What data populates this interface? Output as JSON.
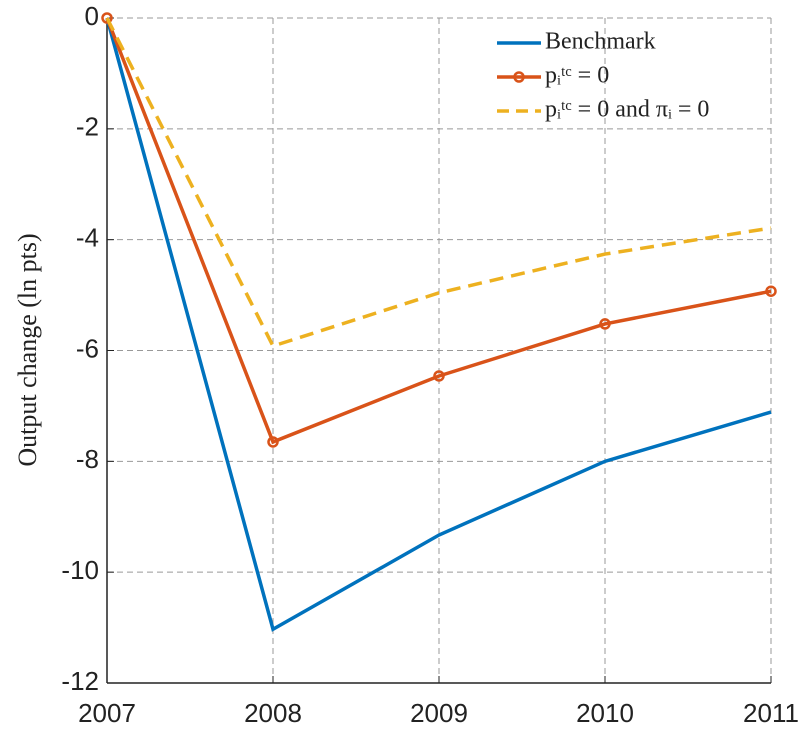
{
  "chart_data": {
    "type": "line",
    "ylabel": "Output change (ln pts)",
    "x": [
      2007,
      2008,
      2009,
      2010,
      2011
    ],
    "xlim": [
      2007,
      2011
    ],
    "xticks": [
      2007,
      2008,
      2009,
      2010,
      2011
    ],
    "ylim": [
      -12,
      0
    ],
    "yticks": [
      0,
      -2,
      -4,
      -6,
      -8,
      -10,
      -12
    ],
    "grid": true,
    "legend": "northeast",
    "series": [
      {
        "name": "Benchmark",
        "color": "#0072bd",
        "style": "solid",
        "marker": "none",
        "values": [
          0,
          -11.03,
          -9.33,
          -8.0,
          -7.11
        ]
      },
      {
        "name": "pᵢᵗᶜ = 0",
        "color": "#d95319",
        "style": "solid",
        "marker": "circle",
        "values": [
          0,
          -7.65,
          -6.46,
          -5.52,
          -4.93
        ]
      },
      {
        "name": "pᵢᵗᶜ = 0 and πᵢ = 0",
        "color": "#edb120",
        "style": "dashed",
        "marker": "none",
        "values": [
          0,
          -5.92,
          -4.96,
          -4.26,
          -3.79
        ]
      }
    ]
  }
}
